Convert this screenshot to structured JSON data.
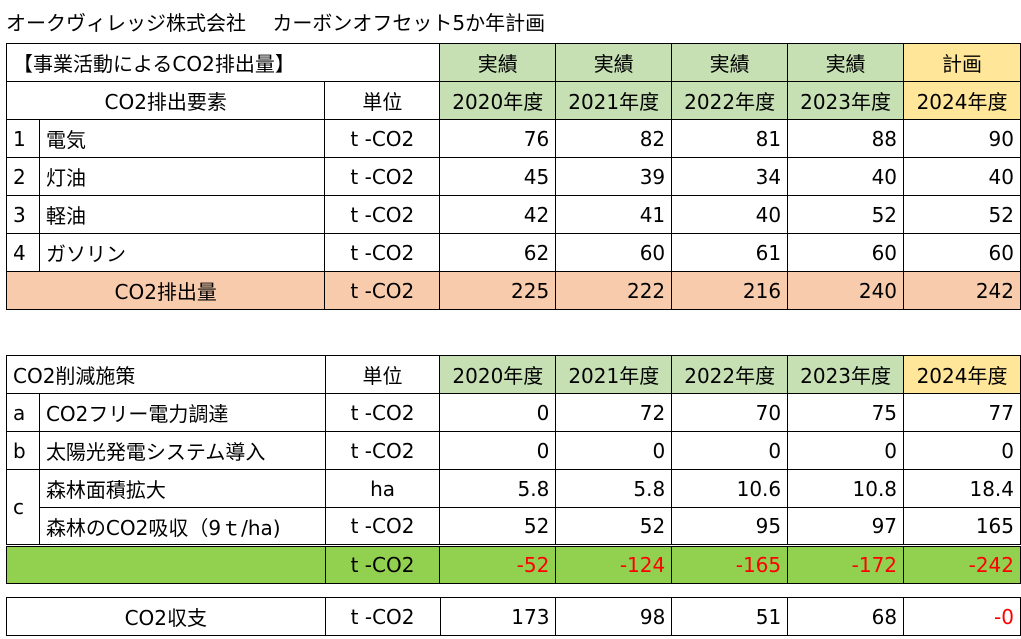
{
  "title": "オークヴィレッジ株式会社　 カーボンオフセット5か年計画",
  "table1": {
    "heading": "【事業活動によるCO2排出量】",
    "status": [
      "実績",
      "実績",
      "実績",
      "実績",
      "計画"
    ],
    "col_item": "CO2排出要素",
    "col_unit": "単位",
    "years": [
      "2020年度",
      "2021年度",
      "2022年度",
      "2023年度",
      "2024年度"
    ],
    "rows": [
      {
        "no": "1",
        "name": "電気",
        "unit": "t -CO2",
        "values": [
          "76",
          "82",
          "81",
          "88",
          "90"
        ]
      },
      {
        "no": "2",
        "name": "灯油",
        "unit": "t -CO2",
        "values": [
          "45",
          "39",
          "34",
          "40",
          "40"
        ]
      },
      {
        "no": "3",
        "name": "軽油",
        "unit": "t -CO2",
        "values": [
          "42",
          "41",
          "40",
          "52",
          "52"
        ]
      },
      {
        "no": "4",
        "name": "ガソリン",
        "unit": "t -CO2",
        "values": [
          "62",
          "60",
          "61",
          "60",
          "60"
        ]
      }
    ],
    "total": {
      "label": "CO2排出量",
      "unit": "t -CO2",
      "values": [
        "225",
        "222",
        "216",
        "240",
        "242"
      ]
    }
  },
  "table2": {
    "heading": "CO2削減施策",
    "col_unit": "単位",
    "years": [
      "2020年度",
      "2021年度",
      "2022年度",
      "2023年度",
      "2024年度"
    ],
    "rows": [
      {
        "no": "a",
        "name": "CO2フリー電力調達",
        "unit": "t -CO2",
        "values": [
          "0",
          "72",
          "70",
          "75",
          "77"
        ]
      },
      {
        "no": "b",
        "name": "太陽光発電システム導入",
        "unit": "t -CO2",
        "values": [
          "0",
          "0",
          "0",
          "0",
          "0"
        ]
      }
    ],
    "group_c": {
      "no": "c",
      "rows": [
        {
          "name": "森林面積拡大",
          "unit": "ha",
          "values": [
            "5.8",
            "5.8",
            "10.6",
            "10.8",
            "18.4"
          ]
        },
        {
          "name": "森林のCO2吸収（9ｔ/ha)",
          "unit": "t -CO2",
          "values": [
            "52",
            "52",
            "95",
            "97",
            "165"
          ]
        }
      ]
    },
    "total": {
      "label": "",
      "unit": "t -CO2",
      "values": [
        "-52",
        "-124",
        "-165",
        "-172",
        "-242"
      ]
    }
  },
  "table3": {
    "label": "CO2収支",
    "unit": "t -CO2",
    "values": [
      "173",
      "98",
      "51",
      "68",
      "-0"
    ]
  },
  "colors": {
    "actual": "#c6e0b4",
    "plan": "#ffe699",
    "emission_total": "#f8cbad",
    "reduction_total": "#92d050",
    "negative": "#ff0000"
  }
}
